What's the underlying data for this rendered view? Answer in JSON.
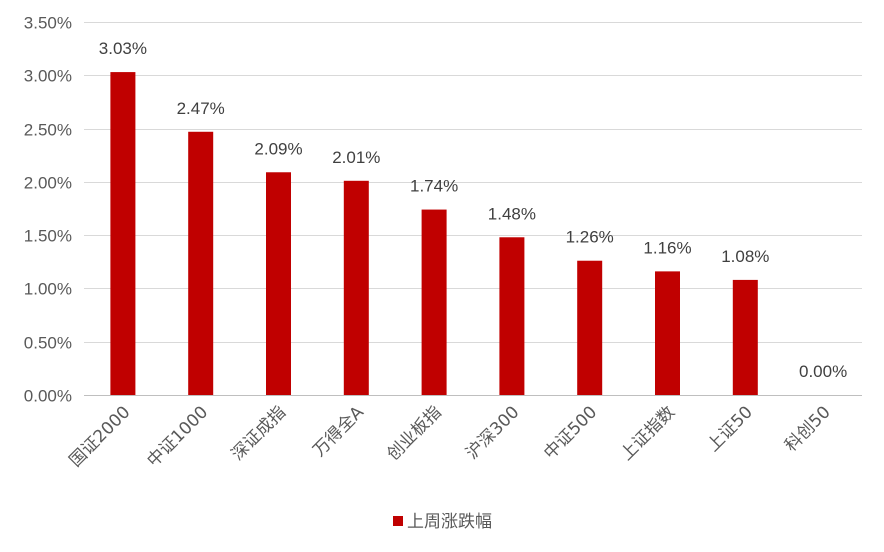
{
  "chart_data": {
    "type": "bar",
    "categories": [
      "国证2000",
      "中证1000",
      "深证成指",
      "万得全A",
      "创业板指",
      "沪深300",
      "中证500",
      "上证指数",
      "上证50",
      "科创50"
    ],
    "series": [
      {
        "name": "上周涨跌幅",
        "values": [
          3.03,
          2.47,
          2.09,
          2.01,
          1.74,
          1.48,
          1.26,
          1.16,
          1.08,
          0.0
        ],
        "data_labels": [
          "3.03%",
          "2.47%",
          "2.09%",
          "2.01%",
          "1.74%",
          "1.48%",
          "1.26%",
          "1.16%",
          "1.08%",
          "0.00%"
        ],
        "color": "#C00000"
      }
    ],
    "title": "",
    "xlabel": "",
    "ylabel": "",
    "ylim": [
      0,
      3.5
    ],
    "yticks": [
      0,
      0.5,
      1.0,
      1.5,
      2.0,
      2.5,
      3.0,
      3.5
    ],
    "ytick_labels": [
      "0.00%",
      "0.50%",
      "1.00%",
      "1.50%",
      "2.00%",
      "2.50%",
      "3.00%",
      "3.50%"
    ],
    "grid": true,
    "legend_position": "bottom"
  },
  "legend": {
    "label": "上周涨跌幅"
  },
  "colors": {
    "bar": "#C00000",
    "grid": "#D9D9D9",
    "text": "#595959"
  }
}
